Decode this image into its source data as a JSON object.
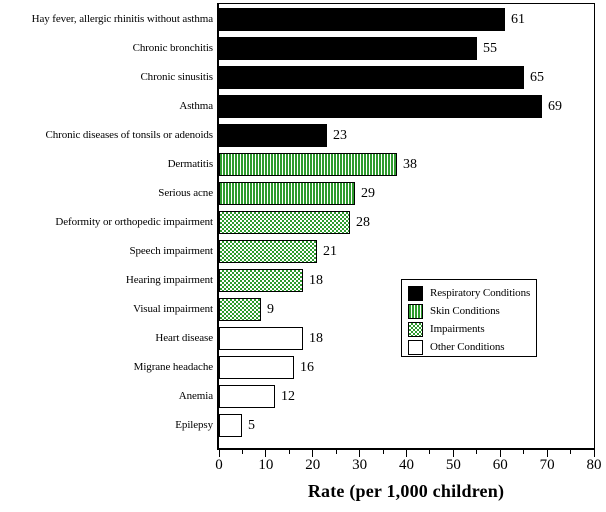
{
  "chart_data": {
    "type": "bar",
    "orientation": "horizontal",
    "xlabel": "Rate (per 1,000 children)",
    "xlim": [
      0,
      80
    ],
    "x_major_ticks": [
      0,
      10,
      20,
      30,
      40,
      50,
      60,
      70,
      80
    ],
    "x_minor_step": 5,
    "grid": false,
    "legend_position": "inside-right",
    "categories": [
      "Hay fever, allergic rhinitis without asthma",
      "Chronic bronchitis",
      "Chronic sinusitis",
      "Asthma",
      "Chronic diseases of tonsils or adenoids",
      "Dermatitis",
      "Serious acne",
      "Deformity or orthopedic impairment",
      "Speech impairment",
      "Hearing impairment",
      "Visual impairment",
      "Heart disease",
      "Migrane headache",
      "Anemia",
      "Epilepsy"
    ],
    "values": [
      61,
      55,
      65,
      69,
      23,
      38,
      29,
      28,
      21,
      18,
      9,
      18,
      16,
      12,
      5
    ],
    "groups": [
      "respiratory",
      "respiratory",
      "respiratory",
      "respiratory",
      "respiratory",
      "skin",
      "skin",
      "impairments",
      "impairments",
      "impairments",
      "impairments",
      "other",
      "other",
      "other",
      "other"
    ],
    "legend": [
      {
        "group": "respiratory",
        "label": "Respiratory Conditions",
        "pattern": "solid-black"
      },
      {
        "group": "skin",
        "label": "Skin Conditions",
        "pattern": "vertical-green-stripes"
      },
      {
        "group": "impairments",
        "label": "Impairments",
        "pattern": "green-checker"
      },
      {
        "group": "other",
        "label": "Other Conditions",
        "pattern": "white"
      }
    ],
    "colors": {
      "bar_black": "#000000",
      "pattern_green": "#2e9b2e",
      "bar_white": "#ffffff",
      "frame_and_text": "#000000",
      "background": "#ffffff"
    }
  }
}
